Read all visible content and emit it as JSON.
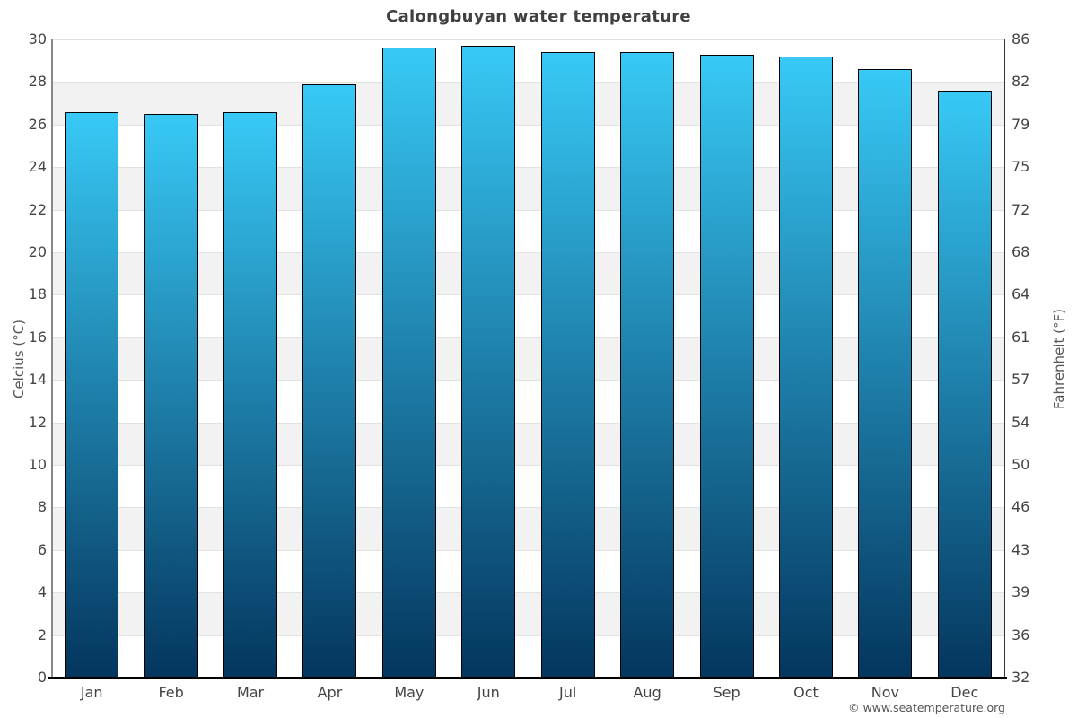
{
  "page": {
    "footer_credit": "© www.seatemperature.org"
  },
  "chart_data": {
    "type": "bar",
    "title": "Calongbuyan water temperature",
    "categories": [
      "Jan",
      "Feb",
      "Mar",
      "Apr",
      "May",
      "Jun",
      "Jul",
      "Aug",
      "Sep",
      "Oct",
      "Nov",
      "Dec"
    ],
    "values": [
      26.6,
      26.5,
      26.6,
      27.9,
      29.6,
      29.7,
      29.4,
      29.4,
      29.3,
      29.2,
      28.6,
      27.6
    ],
    "series_unit": "°C",
    "xlabel": "",
    "left_axis": {
      "title": "Celcius (°C)",
      "range": [
        0,
        30
      ],
      "ticks": [
        0,
        2,
        4,
        6,
        8,
        10,
        12,
        14,
        16,
        18,
        20,
        22,
        24,
        26,
        28,
        30
      ]
    },
    "right_axis": {
      "title": "Fahrenheit (°F)",
      "range": [
        32,
        86
      ],
      "ticks": [
        32,
        36,
        39,
        43,
        46,
        50,
        54,
        57,
        61,
        64,
        68,
        72,
        75,
        79,
        82,
        86
      ]
    },
    "legend": "none",
    "grid": "horizontal alternating bands every 2°C, white and light gray",
    "colors": {
      "bar_gradient_top": "#38c9f6",
      "bar_gradient_bottom": "#04365e",
      "bar_border": "#000000",
      "band_fill": "#f2f2f2",
      "grid_line": "#e2e2e2",
      "axis_line_left": "#888888",
      "axis_line_right": "#333333",
      "baseline": "#000000",
      "title_color": "#404040",
      "tick_label_color": "#444444",
      "axis_title_color": "#555555",
      "footer_color": "#555555"
    }
  }
}
